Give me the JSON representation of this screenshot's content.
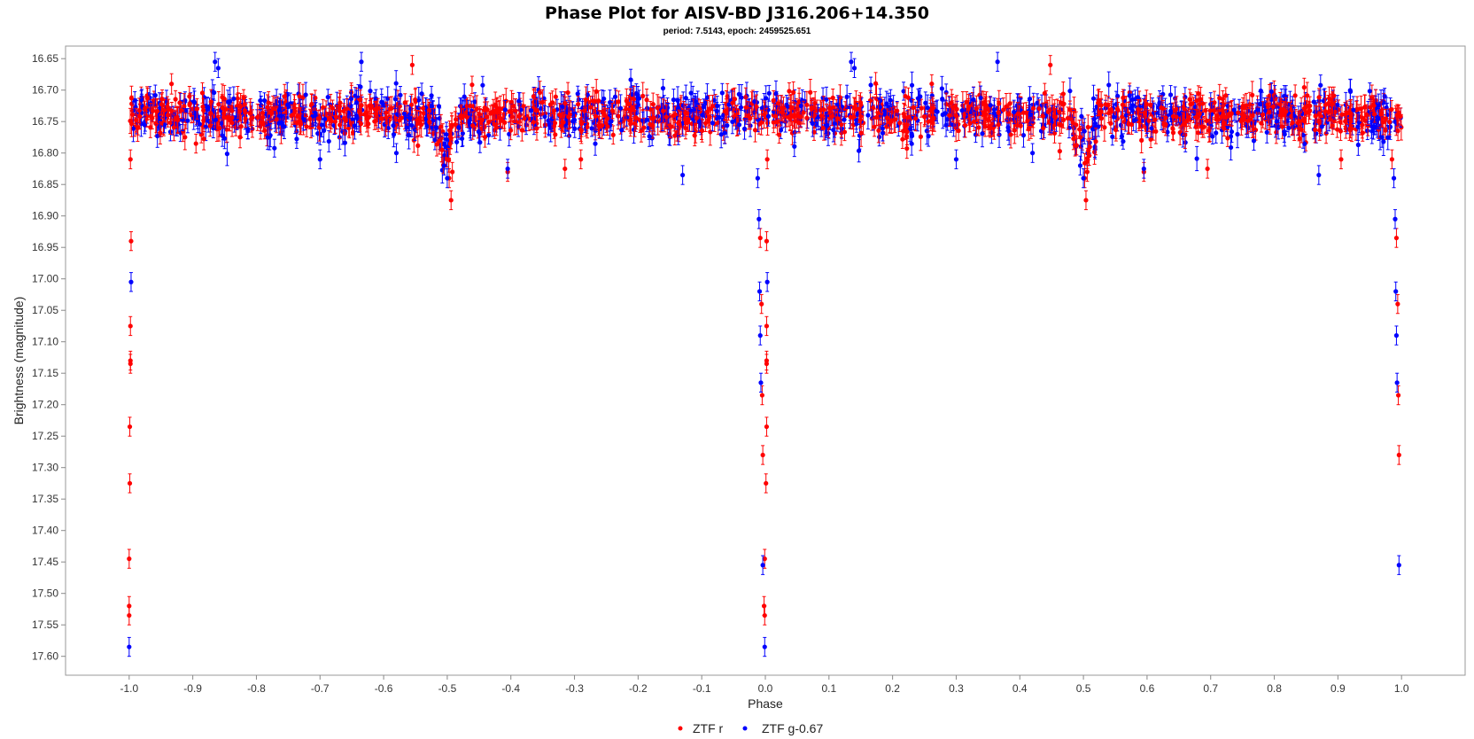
{
  "chart_data": {
    "type": "scatter",
    "title": "Phase Plot for AISV-BD J316.206+14.350",
    "subtitle": "period: 7.5143, epoch: 2459525.651",
    "xlabel": "Phase",
    "ylabel": "Brightness (magnitude)",
    "xlim": [
      -1.1,
      1.1
    ],
    "ylim": [
      16.63,
      17.63
    ],
    "y_inverted": true,
    "grid": false,
    "legend_position": "bottom-center",
    "x_ticks": [
      "-1.0",
      "-0.9",
      "-0.8",
      "-0.7",
      "-0.6",
      "-0.5",
      "-0.4",
      "-0.3",
      "-0.2",
      "-0.1",
      "0.0",
      "0.1",
      "0.2",
      "0.3",
      "0.4",
      "0.5",
      "0.6",
      "0.7",
      "0.8",
      "0.9",
      "1.0"
    ],
    "y_ticks": [
      "16.65",
      "16.70",
      "16.75",
      "16.80",
      "16.85",
      "16.90",
      "16.95",
      "17.00",
      "17.05",
      "17.10",
      "17.15",
      "17.20",
      "17.25",
      "17.30",
      "17.35",
      "17.40",
      "17.45",
      "17.50",
      "17.55",
      "17.60"
    ],
    "series": [
      {
        "name": "ZTF r",
        "color": "#ff0000",
        "baseline": {
          "mean": 16.74,
          "scatter": 0.025,
          "x_range": [
            -1.0,
            1.0
          ],
          "count": 1200
        },
        "points": [
          {
            "x": -0.997,
            "y": 16.94
          },
          {
            "x": -0.998,
            "y": 17.075
          },
          {
            "x": -0.998,
            "y": 17.13
          },
          {
            "x": -0.998,
            "y": 17.135
          },
          {
            "x": -0.999,
            "y": 17.235
          },
          {
            "x": -0.999,
            "y": 17.325
          },
          {
            "x": -1.0,
            "y": 17.445
          },
          {
            "x": -1.0,
            "y": 17.52
          },
          {
            "x": -1.0,
            "y": 17.535
          },
          {
            "x": -0.998,
            "y": 16.81
          },
          {
            "x": -0.492,
            "y": 16.83
          },
          {
            "x": -0.494,
            "y": 16.875
          },
          {
            "x": -0.497,
            "y": 16.84
          },
          {
            "x": -0.405,
            "y": 16.83
          },
          {
            "x": -0.555,
            "y": 16.66
          },
          {
            "x": -0.008,
            "y": 16.935
          },
          {
            "x": -0.006,
            "y": 17.04
          },
          {
            "x": 0.002,
            "y": 16.94
          },
          {
            "x": 0.002,
            "y": 17.075
          },
          {
            "x": 0.002,
            "y": 17.13
          },
          {
            "x": 0.002,
            "y": 17.135
          },
          {
            "x": 0.002,
            "y": 17.235
          },
          {
            "x": -0.005,
            "y": 17.185
          },
          {
            "x": -0.004,
            "y": 17.28
          },
          {
            "x": 0.001,
            "y": 17.325
          },
          {
            "x": -0.001,
            "y": 17.445
          },
          {
            "x": -0.002,
            "y": 17.52
          },
          {
            "x": -0.001,
            "y": 17.535
          },
          {
            "x": 0.003,
            "y": 16.81
          },
          {
            "x": 0.506,
            "y": 16.83
          },
          {
            "x": 0.504,
            "y": 16.875
          },
          {
            "x": 0.502,
            "y": 16.84
          },
          {
            "x": 0.595,
            "y": 16.83
          },
          {
            "x": 0.448,
            "y": 16.66
          },
          {
            "x": 0.992,
            "y": 16.935
          },
          {
            "x": 0.994,
            "y": 17.04
          },
          {
            "x": 0.995,
            "y": 17.185
          },
          {
            "x": 0.996,
            "y": 17.28
          },
          {
            "x": 0.985,
            "y": 16.81
          },
          {
            "x": -0.29,
            "y": 16.81
          },
          {
            "x": -0.315,
            "y": 16.825
          },
          {
            "x": 0.695,
            "y": 16.825
          },
          {
            "x": 0.905,
            "y": 16.81
          },
          {
            "x": -0.895,
            "y": 16.785
          }
        ]
      },
      {
        "name": "ZTF g-0.67",
        "color": "#0000ff",
        "baseline": {
          "mean": 16.74,
          "scatter": 0.03,
          "x_range": [
            -1.0,
            1.0
          ],
          "count": 950
        },
        "points": [
          {
            "x": -0.997,
            "y": 17.005
          },
          {
            "x": -1.0,
            "y": 17.585
          },
          {
            "x": -0.865,
            "y": 16.655
          },
          {
            "x": -0.86,
            "y": 16.665
          },
          {
            "x": -0.635,
            "y": 16.655
          },
          {
            "x": -0.505,
            "y": 16.82
          },
          {
            "x": -0.5,
            "y": 16.84
          },
          {
            "x": -0.405,
            "y": 16.825
          },
          {
            "x": -0.13,
            "y": 16.835
          },
          {
            "x": -0.012,
            "y": 16.84
          },
          {
            "x": -0.01,
            "y": 16.905
          },
          {
            "x": -0.009,
            "y": 17.02
          },
          {
            "x": -0.008,
            "y": 17.09
          },
          {
            "x": -0.007,
            "y": 17.165
          },
          {
            "x": -0.004,
            "y": 17.455
          },
          {
            "x": 0.003,
            "y": 17.005
          },
          {
            "x": -0.001,
            "y": 17.585
          },
          {
            "x": 0.135,
            "y": 16.655
          },
          {
            "x": 0.14,
            "y": 16.665
          },
          {
            "x": 0.365,
            "y": 16.655
          },
          {
            "x": 0.495,
            "y": 16.82
          },
          {
            "x": 0.5,
            "y": 16.84
          },
          {
            "x": 0.595,
            "y": 16.825
          },
          {
            "x": 0.87,
            "y": 16.835
          },
          {
            "x": 0.988,
            "y": 16.84
          },
          {
            "x": 0.99,
            "y": 16.905
          },
          {
            "x": 0.991,
            "y": 17.02
          },
          {
            "x": 0.992,
            "y": 17.09
          },
          {
            "x": 0.993,
            "y": 17.165
          },
          {
            "x": 0.996,
            "y": 17.455
          },
          {
            "x": -0.7,
            "y": 16.81
          },
          {
            "x": 0.3,
            "y": 16.81
          },
          {
            "x": -0.58,
            "y": 16.8
          },
          {
            "x": 0.42,
            "y": 16.8
          }
        ]
      }
    ]
  }
}
